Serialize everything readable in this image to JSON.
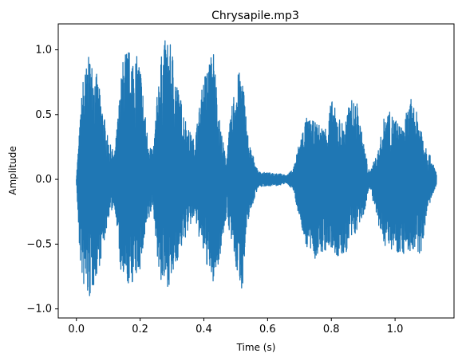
{
  "chart_data": {
    "type": "line",
    "title": "Chrysapile.mp3",
    "xlabel": "Time (s)",
    "ylabel": "Amplitude",
    "xlim": [
      -0.057,
      1.185
    ],
    "ylim": [
      -1.07,
      1.2
    ],
    "x_ticks": [
      {
        "value": 0.0,
        "label": "0.0"
      },
      {
        "value": 0.2,
        "label": "0.2"
      },
      {
        "value": 0.4,
        "label": "0.4"
      },
      {
        "value": 0.6,
        "label": "0.6"
      },
      {
        "value": 0.8,
        "label": "0.8"
      },
      {
        "value": 1.0,
        "label": "1.0"
      }
    ],
    "y_ticks": [
      {
        "value": -1.0,
        "label": "−1.0"
      },
      {
        "value": -0.5,
        "label": "−0.5"
      },
      {
        "value": 0.0,
        "label": "0.0"
      },
      {
        "value": 0.5,
        "label": "0.5"
      },
      {
        "value": 1.0,
        "label": "1.0"
      }
    ],
    "grid": false,
    "series": [
      {
        "color": "#1f77b4",
        "x_range": [
          0.0,
          1.13
        ],
        "envelope": {
          "x": [
            0.0,
            0.01,
            0.02,
            0.04,
            0.06,
            0.08,
            0.1,
            0.12,
            0.14,
            0.15,
            0.18,
            0.2,
            0.22,
            0.24,
            0.26,
            0.28,
            0.3,
            0.32,
            0.35,
            0.37,
            0.4,
            0.43,
            0.45,
            0.47,
            0.48,
            0.5,
            0.52,
            0.54,
            0.57,
            0.6,
            0.63,
            0.66,
            0.68,
            0.7,
            0.72,
            0.75,
            0.78,
            0.8,
            0.82,
            0.84,
            0.86,
            0.88,
            0.9,
            0.92,
            0.95,
            0.97,
            1.0,
            1.02,
            1.05,
            1.08,
            1.1,
            1.13
          ],
          "upper": [
            0.02,
            0.4,
            0.78,
            0.96,
            0.86,
            0.6,
            0.3,
            0.2,
            0.78,
            1.02,
            0.98,
            0.92,
            0.4,
            0.2,
            0.88,
            1.1,
            1.02,
            0.7,
            0.4,
            0.3,
            0.8,
            1.02,
            0.45,
            0.15,
            0.4,
            0.8,
            0.85,
            0.3,
            0.06,
            0.05,
            0.05,
            0.03,
            0.08,
            0.3,
            0.48,
            0.44,
            0.4,
            0.62,
            0.5,
            0.42,
            0.62,
            0.6,
            0.3,
            0.05,
            0.25,
            0.55,
            0.48,
            0.4,
            0.62,
            0.45,
            0.25,
            0.05
          ],
          "lower": [
            -0.02,
            -0.6,
            -0.82,
            -0.95,
            -0.78,
            -0.6,
            -0.3,
            -0.2,
            -0.75,
            -0.84,
            -0.8,
            -0.7,
            -0.4,
            -0.2,
            -0.78,
            -0.84,
            -0.8,
            -0.6,
            -0.4,
            -0.3,
            -0.6,
            -0.82,
            -0.6,
            -0.3,
            -0.4,
            -0.7,
            -0.86,
            -0.3,
            -0.06,
            -0.05,
            -0.05,
            -0.03,
            -0.08,
            -0.3,
            -0.52,
            -0.62,
            -0.56,
            -0.55,
            -0.62,
            -0.6,
            -0.5,
            -0.4,
            -0.3,
            -0.05,
            -0.4,
            -0.52,
            -0.55,
            -0.58,
            -0.56,
            -0.6,
            -0.25,
            -0.05
          ]
        }
      }
    ]
  }
}
